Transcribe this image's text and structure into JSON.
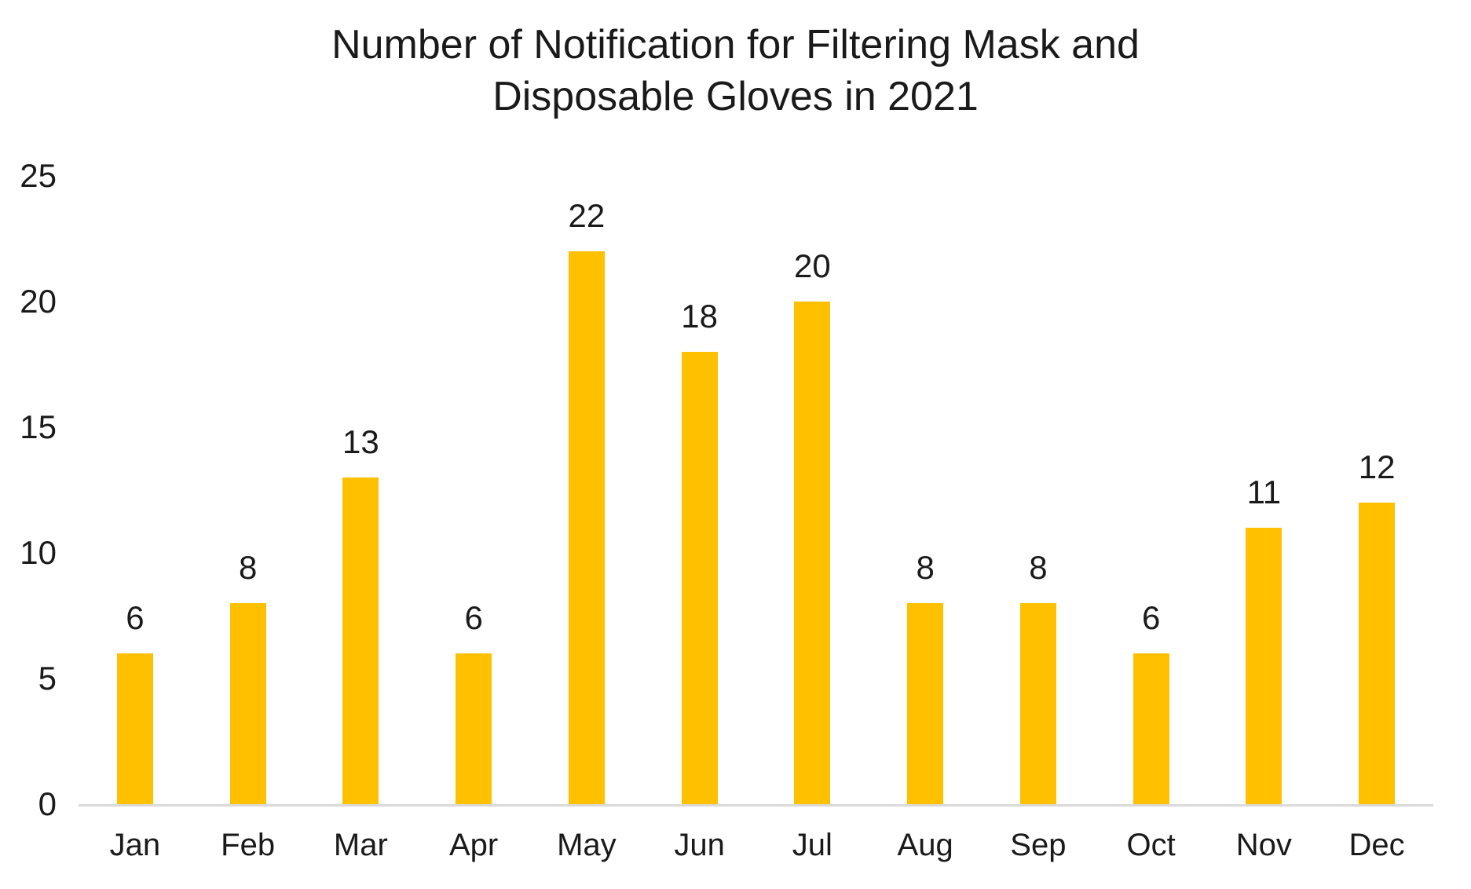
{
  "chart_data": {
    "type": "bar",
    "title": "Number of Notification for Filtering Mask and Disposable Gloves in 2021",
    "title_lines": {
      "line1": "Number of Notification for Filtering Mask and",
      "line2": "Disposable Gloves in 2021"
    },
    "categories": [
      "Jan",
      "Feb",
      "Mar",
      "Apr",
      "May",
      "Jun",
      "Jul",
      "Aug",
      "Sep",
      "Oct",
      "Nov",
      "Dec"
    ],
    "values": [
      6,
      8,
      13,
      6,
      22,
      18,
      20,
      8,
      8,
      6,
      11,
      12
    ],
    "data_labels_shown": true,
    "xlabel": "",
    "ylabel": "",
    "ylim": [
      0,
      25
    ],
    "yticks": [
      0,
      5,
      10,
      15,
      20,
      25
    ],
    "grid": false,
    "legend": false,
    "bar_color": "#FFC000",
    "axis_line_color": "#D9D9D9",
    "text_color": "#1A1A1A",
    "background_color": "#FFFFFF"
  }
}
